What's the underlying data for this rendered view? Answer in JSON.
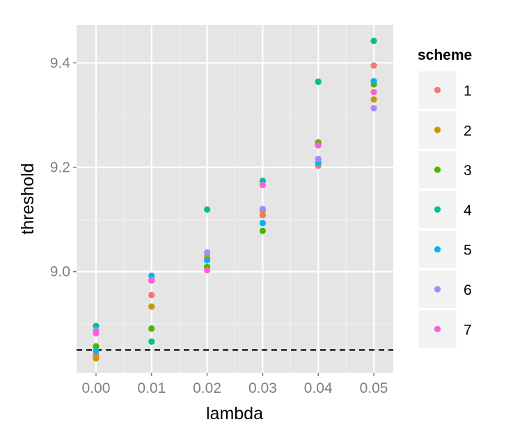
{
  "chart_data": {
    "type": "scatter",
    "xlabel": "lambda",
    "ylabel": "threshold",
    "xlim": [
      -0.0035,
      0.0535
    ],
    "ylim": [
      8.8065,
      9.4725
    ],
    "x_ticks": [
      "0.00",
      "0.01",
      "0.02",
      "0.03",
      "0.04",
      "0.05"
    ],
    "x_tick_values": [
      0,
      0.01,
      0.02,
      0.03,
      0.04,
      0.05
    ],
    "y_ticks": [
      "9.0",
      "9.2",
      "9.4"
    ],
    "y_tick_values": [
      9.0,
      9.2,
      9.4
    ],
    "reference_line": {
      "y": 8.85,
      "style": "dashed"
    },
    "legend": {
      "title": "scheme",
      "position": "right"
    },
    "panel_background": "#e5e5e5",
    "series": [
      {
        "name": "1",
        "color": "#F8766D",
        "x": [
          0,
          0.01,
          0.02,
          0.03,
          0.04,
          0.05
        ],
        "y": [
          8.84,
          8.955,
          9.025,
          9.108,
          9.203,
          9.395
        ]
      },
      {
        "name": "2",
        "color": "#C49A00",
        "x": [
          0,
          0.01,
          0.02,
          0.03,
          0.04,
          0.05
        ],
        "y": [
          8.834,
          8.933,
          9.03,
          9.117,
          9.248,
          9.33
        ]
      },
      {
        "name": "3",
        "color": "#53B400",
        "x": [
          0,
          0.01,
          0.02,
          0.03,
          0.04,
          0.05
        ],
        "y": [
          8.857,
          8.891,
          9.009,
          9.078,
          9.246,
          9.359
        ]
      },
      {
        "name": "4",
        "color": "#00C094",
        "x": [
          0,
          0.01,
          0.02,
          0.03,
          0.04,
          0.05
        ],
        "y": [
          8.896,
          8.866,
          9.119,
          9.174,
          9.364,
          9.442
        ]
      },
      {
        "name": "5",
        "color": "#00B6EB",
        "x": [
          0,
          0.01,
          0.02,
          0.03,
          0.04,
          0.05
        ],
        "y": [
          8.848,
          8.992,
          9.022,
          9.093,
          9.209,
          9.365
        ]
      },
      {
        "name": "6",
        "color": "#A58AFF",
        "x": [
          0,
          0.01,
          0.02,
          0.03,
          0.04,
          0.05
        ],
        "y": [
          8.888,
          8.984,
          9.037,
          9.12,
          9.216,
          9.313
        ]
      },
      {
        "name": "7",
        "color": "#FB61D7",
        "x": [
          0,
          0.01,
          0.02,
          0.03,
          0.04,
          0.05
        ],
        "y": [
          8.882,
          8.983,
          9.003,
          9.166,
          9.242,
          9.344
        ]
      }
    ]
  }
}
